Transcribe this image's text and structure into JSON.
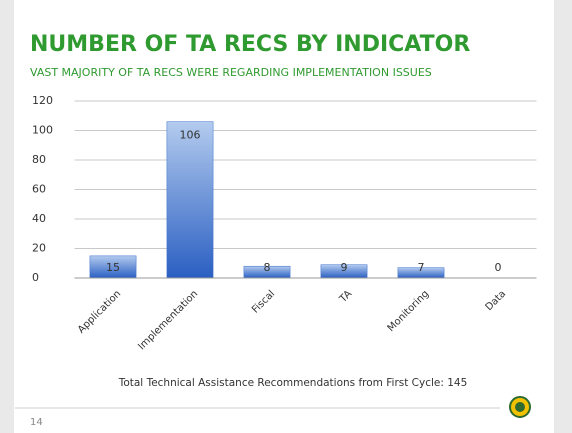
{
  "chart_data": {
    "type": "bar",
    "title": "NUMBER OF TA RECS BY INDICATOR",
    "subtitle": "VAST MAJORITY OF TA RECS WERE REGARDING IMPLEMENTATION ISSUES",
    "categories": [
      "Application",
      "Implementation",
      "Fiscal",
      "TA",
      "Monitoring",
      "Data"
    ],
    "values": [
      15,
      106,
      8,
      9,
      7,
      0
    ],
    "color": "#3a6fcc",
    "ylim": [
      0,
      120
    ],
    "yticks": [
      0,
      20,
      40,
      60,
      80,
      100,
      120
    ],
    "grid": true,
    "annotation": "Total Technical Assistance Recommendations from First Cycle: 145",
    "page_number": "14"
  }
}
